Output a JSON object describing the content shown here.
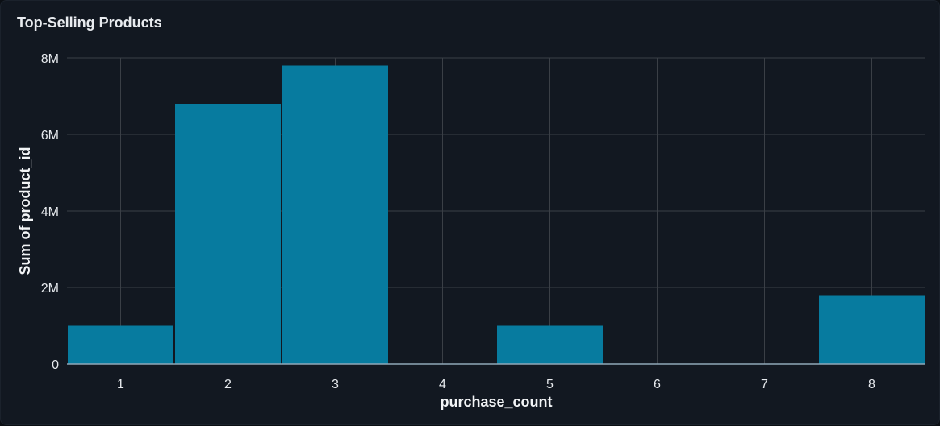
{
  "panel": {
    "title": "Top-Selling Products"
  },
  "colors": {
    "background": "#121821",
    "grid": "#3a3f46",
    "bar": "#077b9f",
    "axis_line": "#8fa8b8",
    "text": "#e6e9ed"
  },
  "chart_data": {
    "type": "bar",
    "title": "Top-Selling Products",
    "xlabel": "purchase_count",
    "ylabel": "Sum of product_id",
    "x_ticks": [
      1,
      2,
      3,
      4,
      5,
      6,
      7,
      8
    ],
    "y_ticks": [
      0,
      2000000,
      4000000,
      6000000,
      8000000
    ],
    "y_tick_labels": [
      "0",
      "2M",
      "4M",
      "6M",
      "8M"
    ],
    "xlim": [
      0.5,
      8.5
    ],
    "ylim": [
      0,
      8000000
    ],
    "grid": true,
    "legend": "none",
    "categories": [
      1,
      2,
      3,
      4,
      5,
      6,
      7,
      8
    ],
    "values": [
      1000000,
      6800000,
      7800000,
      0,
      1000000,
      0,
      0,
      1800000
    ]
  }
}
